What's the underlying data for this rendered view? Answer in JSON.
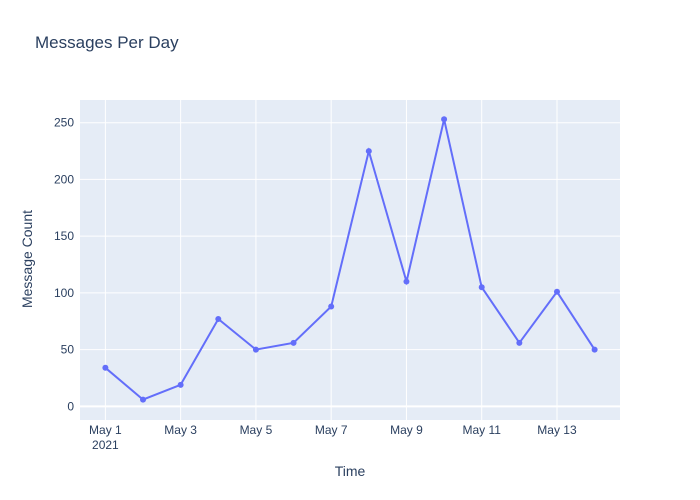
{
  "chart_data": {
    "type": "line",
    "title": "Messages Per Day",
    "xlabel": "Time",
    "ylabel": "Message Count",
    "x": [
      "2021-05-01",
      "2021-05-02",
      "2021-05-03",
      "2021-05-04",
      "2021-05-05",
      "2021-05-06",
      "2021-05-07",
      "2021-05-08",
      "2021-05-09",
      "2021-05-10",
      "2021-05-11",
      "2021-05-12",
      "2021-05-13",
      "2021-05-14"
    ],
    "series": [
      {
        "values": [
          34,
          6,
          19,
          77,
          50,
          56,
          88,
          225,
          110,
          253,
          105,
          56,
          101,
          50
        ]
      }
    ],
    "x_ticks": [
      {
        "label": "May 1",
        "sublabel": "2021"
      },
      {
        "label": "May 3",
        "sublabel": ""
      },
      {
        "label": "May 5",
        "sublabel": ""
      },
      {
        "label": "May 7",
        "sublabel": ""
      },
      {
        "label": "May 9",
        "sublabel": ""
      },
      {
        "label": "May 11",
        "sublabel": ""
      },
      {
        "label": "May 13",
        "sublabel": ""
      }
    ],
    "y_ticks": [
      "0",
      "50",
      "100",
      "150",
      "200",
      "250"
    ],
    "ylim": [
      -12,
      270
    ],
    "grid": true,
    "colors": {
      "line": "#636efa",
      "plot_bg": "#e5ecf6",
      "grid": "#ffffff",
      "text": "#2a3f5f"
    }
  }
}
